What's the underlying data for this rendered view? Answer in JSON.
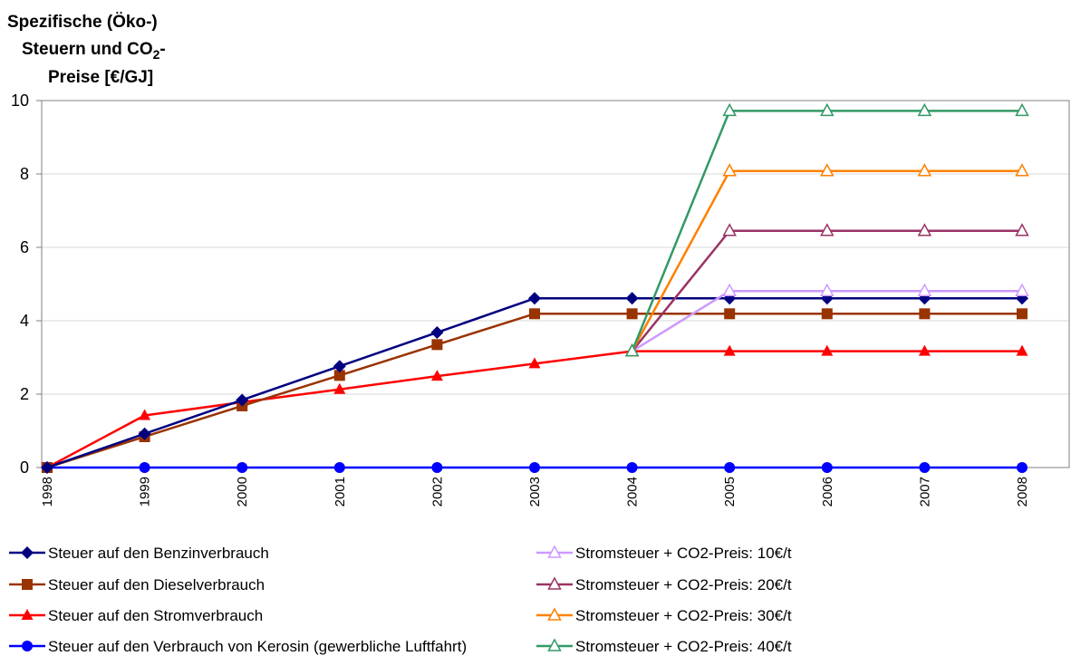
{
  "chart_data": {
    "type": "line",
    "title_lines": [
      "Spezifische (Öko-)",
      "Steuern und CO",
      "-",
      "Preise [€/GJ]"
    ],
    "title_subscript": "2",
    "x": [
      "1998",
      "1999",
      "2000",
      "2001",
      "2002",
      "2003",
      "2004",
      "2005",
      "2006",
      "2007",
      "2008"
    ],
    "ylim": [
      0,
      10
    ],
    "yticks": [
      0,
      2,
      4,
      6,
      8,
      10
    ],
    "grid": "horizontal",
    "legend_position": "bottom",
    "series": [
      {
        "name": "Steuer auf den Benzinverbrauch",
        "color": "#000080",
        "marker": "diamond",
        "values": [
          0,
          0.92,
          1.84,
          2.76,
          3.68,
          4.61,
          4.61,
          4.61,
          4.61,
          4.61,
          4.61
        ]
      },
      {
        "name": "Steuer auf den Dieselverbrauch",
        "color": "#993300",
        "marker": "square",
        "values": [
          0,
          0.84,
          1.68,
          2.51,
          3.35,
          4.19,
          4.19,
          4.19,
          4.19,
          4.19,
          4.19
        ]
      },
      {
        "name": "Steuer auf den Stromverbrauch",
        "color": "#ff0000",
        "marker": "triangle",
        "values": [
          0,
          1.42,
          1.78,
          2.13,
          2.49,
          2.83,
          3.17,
          3.17,
          3.17,
          3.17,
          3.17
        ]
      },
      {
        "name": "Steuer auf den Verbrauch von Kerosin (gewerbliche Luftfahrt)",
        "color": "#0000ff",
        "marker": "circle",
        "values": [
          0,
          0,
          0,
          0,
          0,
          0,
          0,
          0,
          0,
          0,
          0
        ]
      },
      {
        "name": "Stromsteuer + CO2-Preis: 10€/t",
        "color": "#cc99ff",
        "marker": "triangle-open",
        "values": [
          null,
          null,
          null,
          null,
          null,
          null,
          3.17,
          4.81,
          4.81,
          4.81,
          4.81
        ]
      },
      {
        "name": "Stromsteuer + CO2-Preis: 20€/t",
        "color": "#993366",
        "marker": "triangle-open",
        "values": [
          null,
          null,
          null,
          null,
          null,
          null,
          3.17,
          6.45,
          6.45,
          6.45,
          6.45
        ]
      },
      {
        "name": "Stromsteuer + CO2-Preis: 30€/t",
        "color": "#ff8000",
        "marker": "triangle-open",
        "values": [
          null,
          null,
          null,
          null,
          null,
          null,
          3.17,
          8.08,
          8.08,
          8.08,
          8.08
        ]
      },
      {
        "name": "Stromsteuer + CO2-Preis: 40€/t",
        "color": "#339966",
        "marker": "triangle-open",
        "values": [
          null,
          null,
          null,
          null,
          null,
          null,
          3.17,
          9.72,
          9.72,
          9.72,
          9.72
        ]
      }
    ]
  }
}
